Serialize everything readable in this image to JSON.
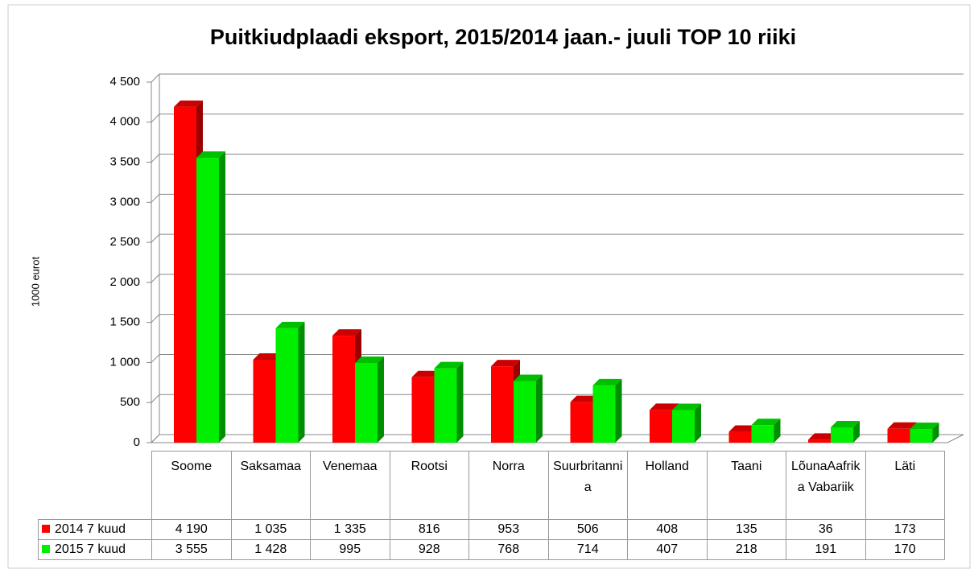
{
  "chart_data": {
    "type": "bar",
    "title": "Puitkiudplaadi eksport, 2015/2014 jaan.- juuli TOP 10 riiki",
    "y_label": "1000 eurot",
    "categories": [
      "Soome",
      "Saksamaa",
      "Venemaa",
      "Rootsi",
      "Norra",
      "Suurbritannia",
      "Holland",
      "Taani",
      "LõunaAafrika Vabariik",
      "Läti"
    ],
    "series": [
      {
        "name": "2014 7 kuud",
        "color": "#ff0000",
        "values": [
          4190,
          1035,
          1335,
          816,
          953,
          506,
          408,
          135,
          36,
          173
        ],
        "value_labels": [
          "4 190",
          "1 035",
          "1 335",
          "816",
          "953",
          "506",
          "408",
          "135",
          "36",
          "173"
        ]
      },
      {
        "name": "2015 7 kuud",
        "color": "#00ee00",
        "values": [
          3555,
          1428,
          995,
          928,
          768,
          714,
          407,
          218,
          191,
          170
        ],
        "value_labels": [
          "3 555",
          "1 428",
          "995",
          "928",
          "768",
          "714",
          "407",
          "218",
          "191",
          "170"
        ]
      }
    ],
    "ylim": [
      0,
      4500
    ],
    "yticks": [
      0,
      500,
      {
        "value": 1000,
        "label": "1 000"
      },
      {
        "value": 1500,
        "label": "1 500"
      },
      {
        "value": 2000,
        "label": "2 000"
      },
      {
        "value": 2500,
        "label": "2 500"
      },
      {
        "value": 3000,
        "label": "3 000"
      },
      {
        "value": 3500,
        "label": "3 500"
      },
      {
        "value": 4000,
        "label": "4 000"
      },
      {
        "value": 4500,
        "label": "4 500"
      }
    ],
    "grid": true
  }
}
